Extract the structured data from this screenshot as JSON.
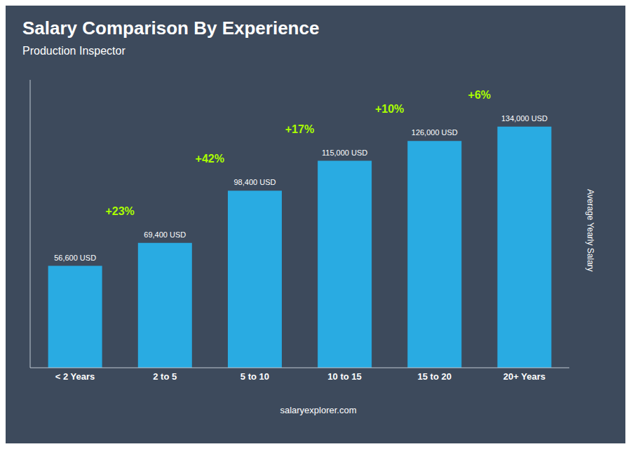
{
  "chart_data": {
    "type": "bar",
    "title": "Salary Comparison By Experience",
    "subtitle": "Production Inspector",
    "categories": [
      "< 2 Years",
      "2 to 5",
      "5 to 10",
      "10 to 15",
      "15 to 20",
      "20+ Years"
    ],
    "values": [
      56600,
      69400,
      98400,
      115000,
      126000,
      134000
    ],
    "value_labels": [
      "56,600 USD",
      "69,400 USD",
      "98,400 USD",
      "115,000 USD",
      "126,000 USD",
      "134,000 USD"
    ],
    "data_labels": true,
    "color": "#29ABE2",
    "ylabel": "Average Yearly Salary",
    "ylim": [
      0,
      160000
    ],
    "tick_labels": "x",
    "grid": false,
    "annotations": [
      {
        "text": "+23%",
        "color": "#AAFF00"
      },
      {
        "text": "+42%",
        "color": "#AAFF00"
      },
      {
        "text": "+17%",
        "color": "#AAFF00"
      },
      {
        "text": "+10%",
        "color": "#AAFF00"
      },
      {
        "text": "+6%",
        "color": "#AAFF00"
      }
    ],
    "footer": "salaryexplorer.com"
  }
}
